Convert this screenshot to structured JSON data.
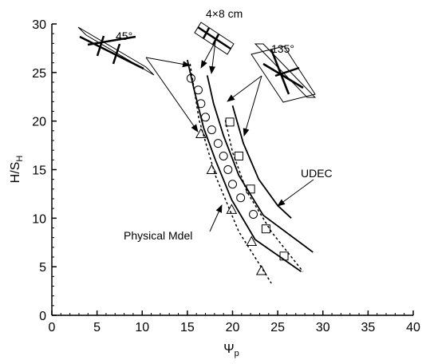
{
  "chart_data": {
    "type": "scatter",
    "xlabel": {
      "text": "Ψ",
      "subscript": "p"
    },
    "ylabel": {
      "text": "H/S",
      "subscript": "H"
    },
    "xlim": [
      0,
      40
    ],
    "xticks": [
      0,
      5,
      10,
      15,
      20,
      25,
      30,
      35,
      40
    ],
    "ylim": [
      0,
      30
    ],
    "yticks": [
      0,
      5,
      10,
      15,
      20,
      25,
      30
    ],
    "color": "#000000",
    "series": [
      {
        "style": "circle",
        "x": [
          15.4,
          16.2,
          16.5,
          17.0,
          17.7,
          18.4,
          19.0,
          19.5,
          20.0,
          20.9,
          22.3
        ],
        "values": [
          24.4,
          23.2,
          21.8,
          20.4,
          19.1,
          17.7,
          16.4,
          15.0,
          13.5,
          12.1,
          10.4
        ]
      },
      {
        "style": "square",
        "x": [
          19.7,
          20.7,
          22.0,
          23.7,
          25.7
        ],
        "values": [
          19.9,
          16.4,
          13.0,
          8.9,
          6.1
        ]
      },
      {
        "style": "triangle",
        "x": [
          16.5,
          17.7,
          19.9,
          22.1,
          23.2
        ],
        "values": [
          18.7,
          15.0,
          10.9,
          7.6,
          4.6
        ]
      },
      {
        "style": "solid",
        "x": [
          15.0,
          15.7,
          16.8,
          18.1,
          19.9,
          22.5,
          27.6
        ],
        "values": [
          26.3,
          23.4,
          19.3,
          16.0,
          11.9,
          7.8,
          4.5
        ]
      },
      {
        "style": "solid",
        "x": [
          17.2,
          17.9,
          19.0,
          20.7,
          23.4,
          28.9
        ],
        "values": [
          24.7,
          21.8,
          18.5,
          14.4,
          10.3,
          6.5
        ]
      },
      {
        "style": "solid",
        "x": [
          20.0,
          21.2,
          22.9,
          25.0,
          26.5
        ],
        "values": [
          21.6,
          17.7,
          14.0,
          11.3,
          10.0
        ]
      },
      {
        "style": "dotted",
        "x": [
          15.3,
          16.3,
          18.1,
          20.7,
          24.3
        ],
        "values": [
          25.9,
          20.1,
          14.4,
          8.6,
          3.3
        ]
      },
      {
        "style": "dotted",
        "x": [
          19.2,
          20.0,
          21.6,
          24.3,
          27.8
        ],
        "values": [
          20.1,
          16.8,
          12.7,
          8.6,
          4.5
        ]
      }
    ],
    "annotations": [
      "45°",
      "4×8 cm",
      "135°",
      "UDEC",
      "Physical Mdel"
    ]
  }
}
